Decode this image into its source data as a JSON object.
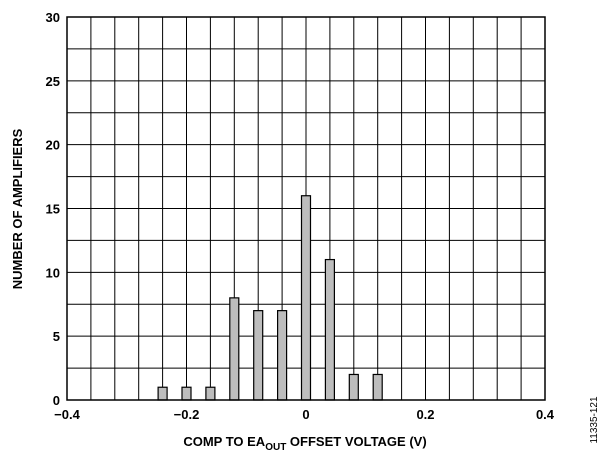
{
  "chart_data": {
    "type": "bar",
    "x": [
      -0.24,
      -0.2,
      -0.16,
      -0.12,
      -0.08,
      -0.04,
      0.0,
      0.04,
      0.08,
      0.12
    ],
    "values": [
      1,
      1,
      1,
      8,
      7,
      7,
      16,
      11,
      2,
      2
    ],
    "xlim": [
      -0.4,
      0.4
    ],
    "ylim": [
      0,
      30
    ],
    "x_ticks": [
      -0.4,
      -0.2,
      0,
      0.2,
      0.4
    ],
    "x_tick_labels": [
      "−0.4",
      "−0.2",
      "0",
      "0.2",
      "0.4"
    ],
    "y_ticks": [
      0,
      5,
      10,
      15,
      20,
      25,
      30
    ],
    "y_tick_labels": [
      "0",
      "5",
      "10",
      "15",
      "20",
      "25",
      "30"
    ],
    "xlabel_parts": [
      "COMP TO EA",
      "OUT",
      " OFFSET VOLTAGE (V)"
    ],
    "ylabel": "NUMBER OF AMPLIFIERS",
    "grid": true,
    "bar_color": "#bdbdbd",
    "figure_code": "11335-121"
  }
}
